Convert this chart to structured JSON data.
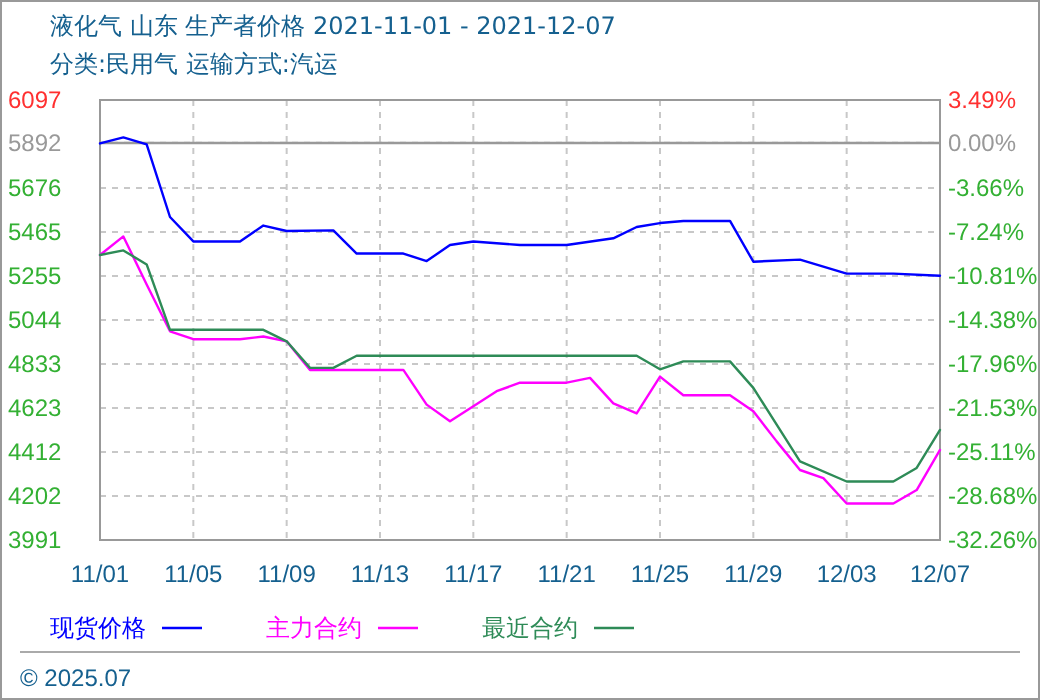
{
  "chart_data": {
    "type": "line",
    "title": "液化气 山东 生产者价格 2021-11-01 - 2021-12-07",
    "subtitle": "分类:民用气 运输方式:汽运",
    "xlim": [
      "2021-11-01",
      "2021-12-07"
    ],
    "xticks": [
      {
        "value": "2021-11-01",
        "label": "11/01"
      },
      {
        "value": "2021-11-05",
        "label": "11/05"
      },
      {
        "value": "2021-11-09",
        "label": "11/09"
      },
      {
        "value": "2021-11-13",
        "label": "11/13"
      },
      {
        "value": "2021-11-17",
        "label": "11/17"
      },
      {
        "value": "2021-11-21",
        "label": "11/21"
      },
      {
        "value": "2021-11-25",
        "label": "11/25"
      },
      {
        "value": "2021-11-29",
        "label": "11/29"
      },
      {
        "value": "2021-12-03",
        "label": "12/03"
      },
      {
        "value": "2021-12-07",
        "label": "12/07"
      }
    ],
    "ylim": [
      3991,
      6097
    ],
    "yticks": [
      6097,
      5892,
      5676,
      5465,
      5255,
      5044,
      4833,
      4623,
      4412,
      4202,
      3991
    ],
    "y2lim": [
      -32.26,
      3.49
    ],
    "y2ticks": [
      {
        "value": 3.49,
        "label": "3.49%"
      },
      {
        "value": 0,
        "label": "0.00%"
      },
      {
        "value": -3.66,
        "label": "-3.66%"
      },
      {
        "value": -7.24,
        "label": "-7.24%"
      },
      {
        "value": -10.81,
        "label": "-10.81%"
      },
      {
        "value": -14.38,
        "label": "-14.38%"
      },
      {
        "value": -17.96,
        "label": "-17.96%"
      },
      {
        "value": -21.53,
        "label": "-21.53%"
      },
      {
        "value": -25.11,
        "label": "-25.11%"
      },
      {
        "value": -28.68,
        "label": "-28.68%"
      },
      {
        "value": -32.26,
        "label": "-32.26%"
      }
    ],
    "grid": true,
    "legend": "bottom",
    "marker": "none",
    "line_style": "solid",
    "ref_lines": [
      {
        "axis": "y2",
        "value": 0,
        "color": "#999999",
        "line_style": "solid"
      }
    ],
    "annotations": [
      "© 2025.07"
    ],
    "series": [
      {
        "name": "现货价格",
        "color": "#0000ff",
        "x": [
          "2021-11-01",
          "2021-11-02",
          "2021-11-03",
          "2021-11-04",
          "2021-11-05",
          "2021-11-07",
          "2021-11-08",
          "2021-11-09",
          "2021-11-11",
          "2021-11-12",
          "2021-11-14",
          "2021-11-15",
          "2021-11-16",
          "2021-11-17",
          "2021-11-19",
          "2021-11-21",
          "2021-11-23",
          "2021-11-24",
          "2021-11-25",
          "2021-11-26",
          "2021-11-28",
          "2021-11-29",
          "2021-12-01",
          "2021-12-03",
          "2021-12-05",
          "2021-12-07"
        ],
        "values": [
          5889,
          5918,
          5885,
          5537,
          5420,
          5420,
          5496,
          5470,
          5473,
          5362,
          5362,
          5326,
          5403,
          5420,
          5403,
          5403,
          5435,
          5489,
          5508,
          5518,
          5518,
          5323,
          5333,
          5266,
          5266,
          5256
        ]
      },
      {
        "name": "主力合约",
        "color": "#ff00ff",
        "x": [
          "2021-11-01",
          "2021-11-02",
          "2021-11-03",
          "2021-11-04",
          "2021-11-05",
          "2021-11-07",
          "2021-11-08",
          "2021-11-09",
          "2021-11-10",
          "2021-11-14",
          "2021-11-15",
          "2021-11-16",
          "2021-11-18",
          "2021-11-19",
          "2021-11-21",
          "2021-11-22",
          "2021-11-23",
          "2021-11-24",
          "2021-11-25",
          "2021-11-26",
          "2021-11-28",
          "2021-11-29",
          "2021-11-30",
          "2021-12-01",
          "2021-12-02",
          "2021-12-03",
          "2021-12-05",
          "2021-12-06",
          "2021-12-07"
        ],
        "values": [
          5355,
          5444,
          5214,
          4990,
          4952,
          4952,
          4965,
          4942,
          4805,
          4805,
          4639,
          4559,
          4703,
          4744,
          4744,
          4767,
          4645,
          4597,
          4773,
          4684,
          4684,
          4607,
          4463,
          4326,
          4287,
          4166,
          4166,
          4230,
          4422
        ]
      },
      {
        "name": "最近合约",
        "color": "#2e8b57",
        "x": [
          "2021-11-01",
          "2021-11-02",
          "2021-11-03",
          "2021-11-04",
          "2021-11-08",
          "2021-11-09",
          "2021-11-10",
          "2021-11-11",
          "2021-11-12",
          "2021-11-24",
          "2021-11-25",
          "2021-11-26",
          "2021-11-28",
          "2021-11-29",
          "2021-12-01",
          "2021-12-03",
          "2021-12-05",
          "2021-12-06",
          "2021-12-07"
        ],
        "values": [
          5355,
          5377,
          5310,
          4997,
          4997,
          4942,
          4815,
          4815,
          4873,
          4873,
          4808,
          4846,
          4846,
          4719,
          4367,
          4271,
          4271,
          4336,
          4518
        ]
      }
    ]
  }
}
